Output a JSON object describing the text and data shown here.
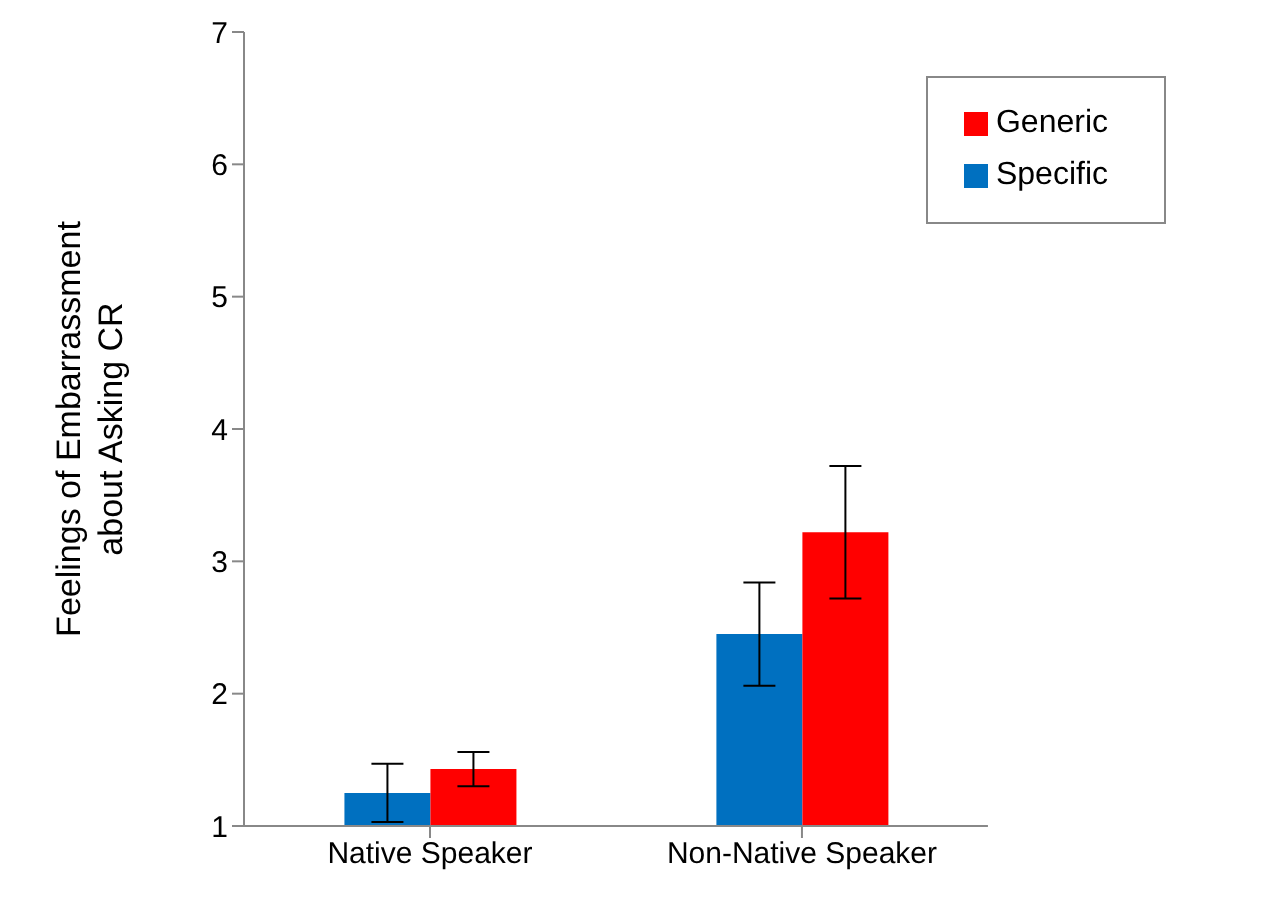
{
  "chart_data": {
    "type": "bar",
    "ylabel": "Feelings of Embarrassment about Asking CR",
    "categories": [
      "Native Speaker",
      "Non-Native Speaker"
    ],
    "series": [
      {
        "name": "Specific",
        "color": "#0070c0",
        "values": [
          1.25,
          2.45
        ],
        "errors": [
          0.22,
          0.39
        ]
      },
      {
        "name": "Generic",
        "color": "#ff0000",
        "values": [
          1.43,
          3.22
        ],
        "errors": [
          0.13,
          0.5
        ]
      }
    ],
    "ylim": [
      1,
      7
    ],
    "yticks": [
      1,
      2,
      3,
      4,
      5,
      6,
      7
    ],
    "grid": false,
    "legend": "top right"
  }
}
